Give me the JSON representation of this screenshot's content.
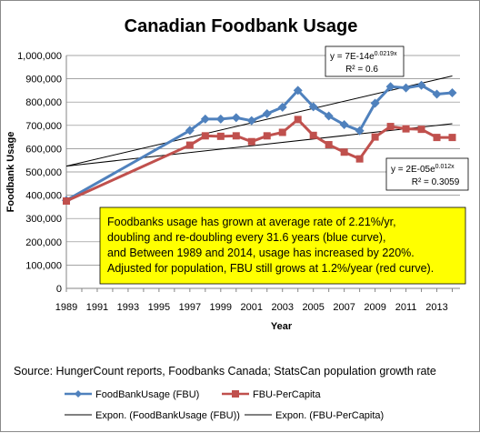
{
  "chart_data": {
    "type": "line",
    "title": "Canadian Foodbank Usage",
    "xlabel": "Year",
    "ylabel": "Foodbank Usage",
    "xlim": [
      1989,
      2014.5
    ],
    "ylim": [
      0,
      1000000
    ],
    "x_ticks": [
      1989,
      1991,
      1993,
      1995,
      1997,
      1999,
      2001,
      2003,
      2005,
      2007,
      2009,
      2011,
      2013
    ],
    "y_ticks": [
      "0",
      "100,000",
      "200,000",
      "300,000",
      "400,000",
      "500,000",
      "600,000",
      "700,000",
      "800,000",
      "900,000",
      "1,000,000"
    ],
    "y_tick_values": [
      0,
      100000,
      200000,
      300000,
      400000,
      500000,
      600000,
      700000,
      800000,
      900000,
      1000000
    ],
    "grid": "horizontal",
    "series": [
      {
        "name": "FoodBankUsage (FBU)",
        "color": "#4f81bd",
        "marker": "diamond",
        "x": [
          1989,
          1997,
          1998,
          1999,
          2000,
          2001,
          2002,
          2003,
          2004,
          2005,
          2006,
          2007,
          2008,
          2009,
          2010,
          2011,
          2012,
          2013,
          2014
        ],
        "y": [
          378000,
          678000,
          727000,
          727000,
          733000,
          720000,
          750000,
          778000,
          850000,
          780000,
          740000,
          703000,
          677000,
          795000,
          866000,
          861000,
          872000,
          834000,
          840000
        ]
      },
      {
        "name": "FBU-PerCapita",
        "color": "#c0504d",
        "marker": "square",
        "x": [
          1989,
          1997,
          1998,
          1999,
          2000,
          2001,
          2002,
          2003,
          2004,
          2005,
          2006,
          2007,
          2008,
          2009,
          2010,
          2011,
          2012,
          2013,
          2014
        ],
        "y": [
          375000,
          615000,
          655000,
          653000,
          655000,
          630000,
          655000,
          670000,
          725000,
          657000,
          617000,
          585000,
          556000,
          650000,
          695000,
          685000,
          683000,
          648000,
          648000
        ]
      }
    ],
    "trendlines": [
      {
        "name": "Expon. (FoodBankUsage (FBU))",
        "color": "#000000",
        "x": [
          1989,
          2014
        ],
        "y": [
          525000,
          912000
        ],
        "equation": "y = 7E-14e",
        "exponent": "0.0219x",
        "r2": "R² = 0.6"
      },
      {
        "name": "Expon. (FBU-PerCapita)",
        "color": "#000000",
        "x": [
          1989,
          2014
        ],
        "y": [
          525000,
          707000
        ],
        "equation": "y = 2E-05e",
        "exponent": "0.012x",
        "r2": "R² = 0.3059"
      }
    ],
    "annotation": [
      "Foodbanks usage has grown at average rate of 2.21%/yr,",
      "doubling and re-doubling every 31.6 years (blue curve),",
      "and Between 1989 and 2014,  usage has increased by 220%.",
      "Adjusted for population, FBU still grows at 1.2%/year (red curve)."
    ],
    "annotation_fill": "#ffff00",
    "source": "Source:  HungerCount reports, Foodbanks Canada; StatsCan population growth rate",
    "legend_position": "bottom"
  }
}
